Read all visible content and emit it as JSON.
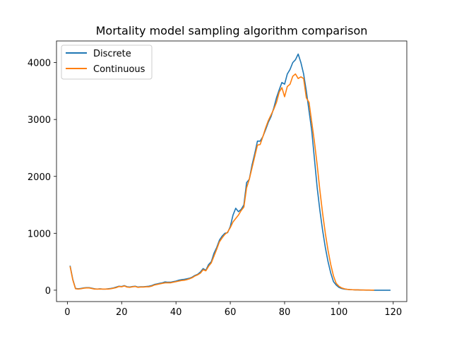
{
  "chart_data": {
    "type": "line",
    "title": "Mortality model sampling algorithm comparison",
    "xlabel": "",
    "ylabel": "",
    "xlim": [
      -4,
      125
    ],
    "ylim": [
      -200,
      4380
    ],
    "xticks": [
      0,
      20,
      40,
      60,
      80,
      100,
      120
    ],
    "yticks": [
      0,
      1000,
      2000,
      3000,
      4000
    ],
    "legend_position": "upper-left",
    "x": [
      1,
      2,
      3,
      4,
      5,
      6,
      7,
      8,
      9,
      10,
      11,
      12,
      13,
      14,
      15,
      16,
      17,
      18,
      19,
      20,
      21,
      22,
      23,
      24,
      25,
      26,
      27,
      28,
      29,
      30,
      31,
      32,
      33,
      34,
      35,
      36,
      37,
      38,
      39,
      40,
      41,
      42,
      43,
      44,
      45,
      46,
      47,
      48,
      49,
      50,
      51,
      52,
      53,
      54,
      55,
      56,
      57,
      58,
      59,
      60,
      61,
      62,
      63,
      64,
      65,
      66,
      67,
      68,
      69,
      70,
      71,
      72,
      73,
      74,
      75,
      76,
      77,
      78,
      79,
      80,
      81,
      82,
      83,
      84,
      85,
      86,
      87,
      88,
      89,
      90,
      91,
      92,
      93,
      94,
      95,
      96,
      97,
      98,
      99,
      100,
      101,
      102,
      103,
      104,
      105,
      106,
      107,
      108,
      109,
      110,
      111,
      112,
      113,
      114,
      115,
      116,
      117,
      118,
      119
    ],
    "series": [
      {
        "name": "Discrete",
        "color": "#1f77b4",
        "values": [
          430,
          190,
          30,
          25,
          30,
          40,
          45,
          45,
          35,
          25,
          20,
          25,
          20,
          20,
          25,
          30,
          40,
          55,
          70,
          65,
          80,
          60,
          55,
          65,
          70,
          55,
          60,
          60,
          65,
          70,
          80,
          100,
          110,
          120,
          130,
          145,
          140,
          140,
          150,
          160,
          175,
          185,
          190,
          200,
          210,
          230,
          260,
          280,
          320,
          380,
          350,
          450,
          500,
          650,
          750,
          880,
          950,
          1000,
          1010,
          1120,
          1320,
          1440,
          1380,
          1420,
          1500,
          1890,
          1950,
          2200,
          2400,
          2620,
          2620,
          2700,
          2820,
          2950,
          3050,
          3200,
          3380,
          3520,
          3650,
          3620,
          3800,
          3880,
          4000,
          4050,
          4150,
          4000,
          3800,
          3500,
          3150,
          2800,
          2300,
          1800,
          1400,
          1050,
          750,
          500,
          300,
          150,
          90,
          50,
          30,
          20,
          15,
          10,
          8,
          5,
          5,
          3,
          2,
          1,
          1,
          1,
          0,
          0,
          0,
          0,
          0,
          0,
          0
        ],
        "include_from": 1,
        "include_to": 119
      },
      {
        "name": "Continuous",
        "color": "#ff7f0e",
        "values": [
          420,
          180,
          25,
          20,
          25,
          35,
          40,
          40,
          30,
          20,
          20,
          20,
          20,
          20,
          20,
          25,
          35,
          45,
          65,
          60,
          75,
          55,
          50,
          60,
          65,
          50,
          55,
          55,
          60,
          60,
          70,
          90,
          100,
          110,
          120,
          130,
          130,
          130,
          140,
          150,
          160,
          170,
          175,
          185,
          200,
          220,
          250,
          270,
          300,
          360,
          340,
          420,
          480,
          600,
          720,
          850,
          920,
          980,
          1020,
          1100,
          1200,
          1260,
          1320,
          1400,
          1460,
          1800,
          1950,
          2150,
          2350,
          2550,
          2560,
          2700,
          2850,
          2980,
          3080,
          3180,
          3300,
          3480,
          3560,
          3400,
          3580,
          3620,
          3760,
          3800,
          3720,
          3750,
          3720,
          3380,
          3300,
          2950,
          2600,
          2200,
          1750,
          1350,
          1000,
          700,
          450,
          250,
          120,
          70,
          40,
          25,
          15,
          10,
          8,
          5,
          5,
          4,
          3,
          2,
          2,
          1,
          1,
          0,
          0,
          0,
          0,
          0,
          0
        ],
        "include_from": 1,
        "include_to": 113
      }
    ]
  }
}
